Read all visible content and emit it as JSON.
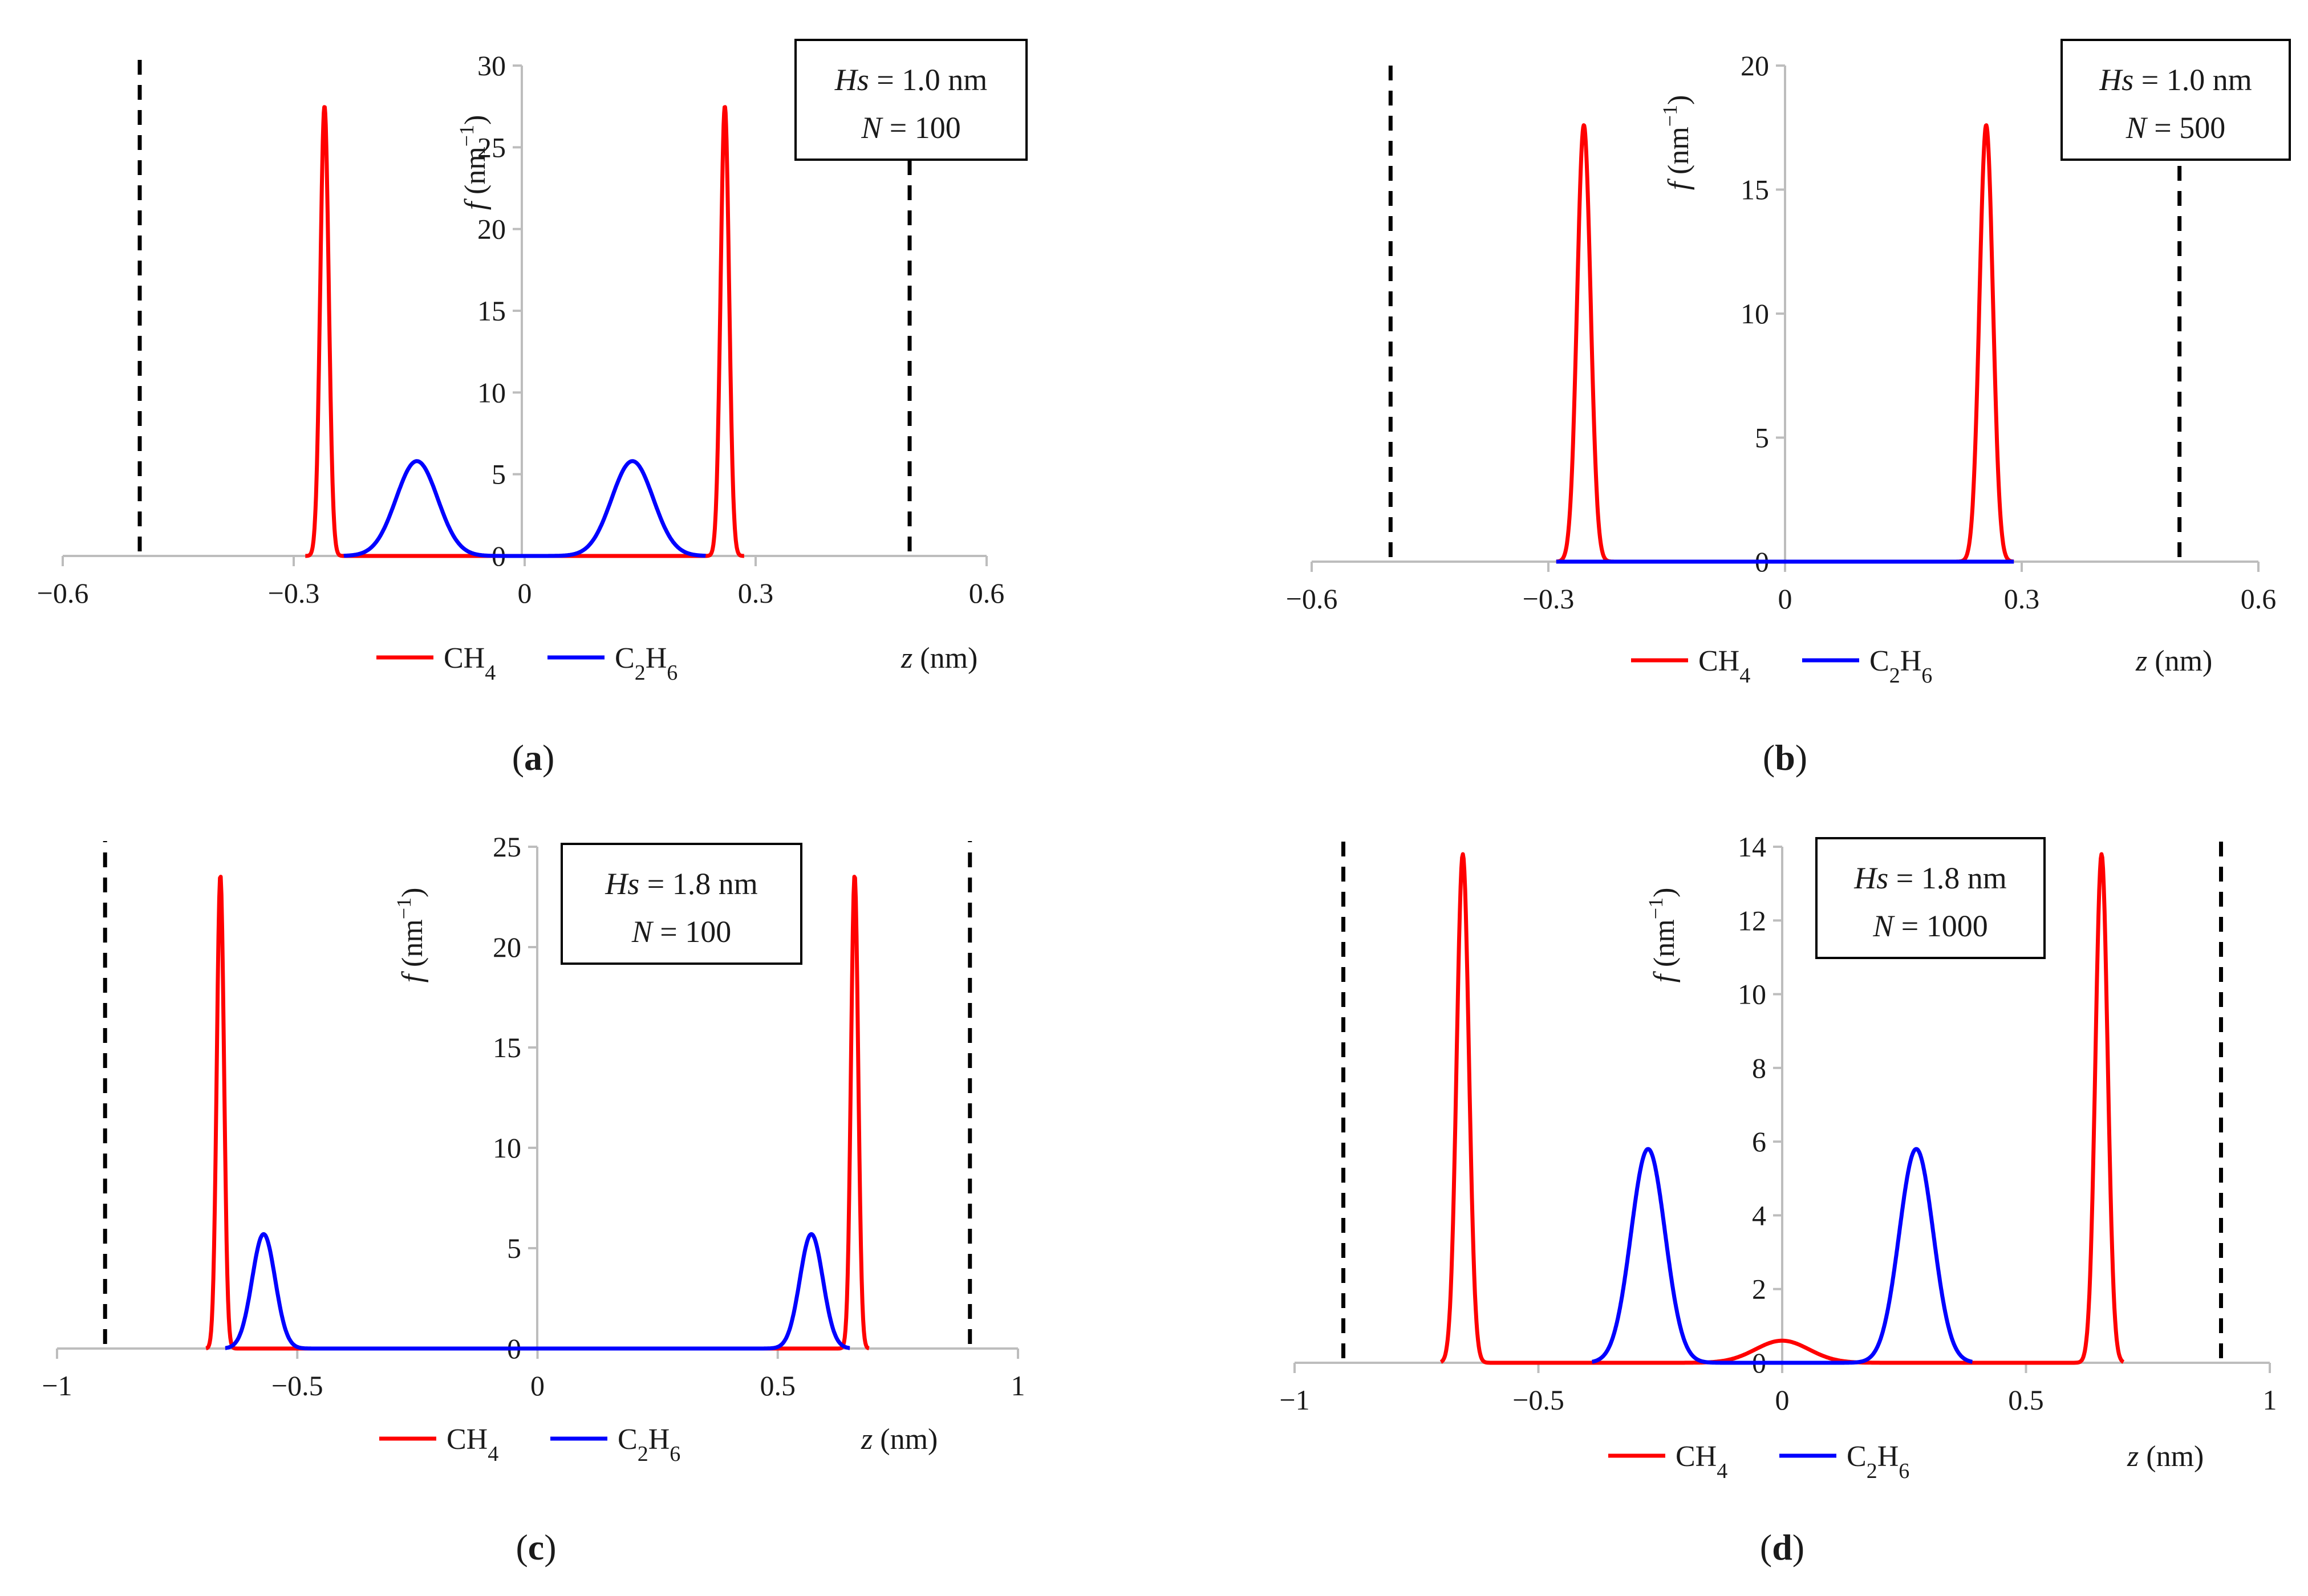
{
  "legend": {
    "ch4": "CH4",
    "c2h6": "C2H6"
  },
  "colors": {
    "ch4": "#ff0000",
    "c2h6": "#0000ff",
    "axis": "#bdbdbd",
    "wall": "#000000"
  },
  "chart_data": [
    {
      "id": "a",
      "panel_label": "a",
      "type": "line",
      "title_lines": [
        "Hs = 1.0 nm",
        "N = 100"
      ],
      "annotation": {
        "hs": "1.0 nm",
        "n": "100"
      },
      "xlabel": "z (nm)",
      "ylabel": "f (nm−1)",
      "xlim": [
        -0.6,
        0.6
      ],
      "ylim": [
        0,
        30
      ],
      "xticks": [
        -0.6,
        -0.3,
        0,
        0.3,
        0.6
      ],
      "xtick_labels": [
        "−0.6",
        "−0.3",
        "0",
        "0.3",
        "0.6"
      ],
      "yticks": [
        0,
        5,
        10,
        15,
        20,
        25,
        30
      ],
      "ytick_labels": [
        "0",
        "5",
        "10",
        "15",
        "20",
        "25",
        "30"
      ],
      "walls": [
        -0.5,
        0.5
      ],
      "series": [
        {
          "name": "CH4",
          "peaks": [
            {
              "center": -0.26,
              "height": 27.5,
              "sigma": 0.0055
            },
            {
              "center": 0.26,
              "height": 27.5,
              "sigma": 0.0055
            }
          ],
          "support": [
            -0.285,
            0.285
          ]
        },
        {
          "name": "C2H6",
          "peaks": [
            {
              "center": -0.14,
              "height": 5.8,
              "sigma": 0.027
            },
            {
              "center": 0.14,
              "height": 5.8,
              "sigma": 0.027
            }
          ],
          "support": [
            -0.235,
            0.235
          ]
        }
      ]
    },
    {
      "id": "b",
      "panel_label": "b",
      "type": "line",
      "title_lines": [
        "Hs = 1.0 nm",
        "N = 500"
      ],
      "annotation": {
        "hs": "1.0 nm",
        "n": "500"
      },
      "xlabel": "z (nm)",
      "ylabel": "f (nm−1)",
      "xlim": [
        -0.6,
        0.6
      ],
      "ylim": [
        0,
        20
      ],
      "xticks": [
        -0.6,
        -0.3,
        0,
        0.3,
        0.6
      ],
      "xtick_labels": [
        "−0.6",
        "−0.3",
        "0",
        "0.3",
        "0.6"
      ],
      "yticks": [
        0,
        5,
        10,
        15,
        20
      ],
      "ytick_labels": [
        "0",
        "5",
        "10",
        "15",
        "20"
      ],
      "walls": [
        -0.5,
        0.5
      ],
      "series": [
        {
          "name": "CH4",
          "peaks": [
            {
              "center": -0.255,
              "height": 17.6,
              "sigma": 0.0085
            },
            {
              "center": 0.255,
              "height": 17.6,
              "sigma": 0.0085
            }
          ],
          "support": [
            -0.29,
            0.29
          ]
        },
        {
          "name": "C2H6",
          "peaks": [],
          "support": [
            -0.29,
            0.29
          ]
        }
      ]
    },
    {
      "id": "c",
      "panel_label": "c",
      "type": "line",
      "title_lines": [
        "Hs = 1.8 nm",
        "N = 100"
      ],
      "annotation": {
        "hs": "1.8 nm",
        "n": "100"
      },
      "xlabel": "z (nm)",
      "ylabel": "f (nm−1)",
      "xlim": [
        -1,
        1
      ],
      "ylim": [
        0,
        25
      ],
      "xticks": [
        -1,
        -0.5,
        0,
        0.5,
        1
      ],
      "xtick_labels": [
        "−1",
        "−0.5",
        "0",
        "0.5",
        "1"
      ],
      "yticks": [
        0,
        5,
        10,
        15,
        20,
        25
      ],
      "ytick_labels": [
        "0",
        "5",
        "10",
        "15",
        "20",
        "25"
      ],
      "walls": [
        -0.9,
        0.9
      ],
      "series": [
        {
          "name": "CH4",
          "peaks": [
            {
              "center": -0.66,
              "height": 23.6,
              "sigma": 0.0075
            },
            {
              "center": 0.66,
              "height": 23.6,
              "sigma": 0.0075
            }
          ],
          "support": [
            -0.69,
            0.69
          ]
        },
        {
          "name": "C2H6",
          "peaks": [
            {
              "center": -0.57,
              "height": 5.7,
              "sigma": 0.024
            },
            {
              "center": 0.57,
              "height": 5.7,
              "sigma": 0.024
            }
          ],
          "support": [
            -0.65,
            0.65
          ]
        }
      ]
    },
    {
      "id": "d",
      "panel_label": "d",
      "type": "line",
      "title_lines": [
        "Hs = 1.8 nm",
        "N = 1000"
      ],
      "annotation": {
        "hs": "1.8 nm",
        "n": "1000"
      },
      "xlabel": "z (nm)",
      "ylabel": "f (nm−1)",
      "xlim": [
        -1,
        1
      ],
      "ylim": [
        0,
        14
      ],
      "xticks": [
        -1,
        -0.5,
        0,
        0.5,
        1
      ],
      "xtick_labels": [
        "−1",
        "−0.5",
        "0",
        "0.5",
        "1"
      ],
      "yticks": [
        0,
        2,
        4,
        6,
        8,
        10,
        12,
        14
      ],
      "ytick_labels": [
        "0",
        "2",
        "4",
        "6",
        "8",
        "10",
        "12",
        "14"
      ],
      "walls": [
        -0.9,
        0.9
      ],
      "series": [
        {
          "name": "CH4",
          "peaks": [
            {
              "center": -0.655,
              "height": 13.8,
              "sigma": 0.0125
            },
            {
              "center": 0.655,
              "height": 13.8,
              "sigma": 0.0125
            },
            {
              "center": 0,
              "height": 0.6,
              "sigma": 0.055
            }
          ],
          "support": [
            -0.7,
            0.7
          ]
        },
        {
          "name": "C2H6",
          "peaks": [
            {
              "center": -0.275,
              "height": 5.8,
              "sigma": 0.035
            },
            {
              "center": 0.275,
              "height": 5.8,
              "sigma": 0.035
            }
          ],
          "support": [
            -0.39,
            0.39
          ]
        }
      ]
    }
  ]
}
